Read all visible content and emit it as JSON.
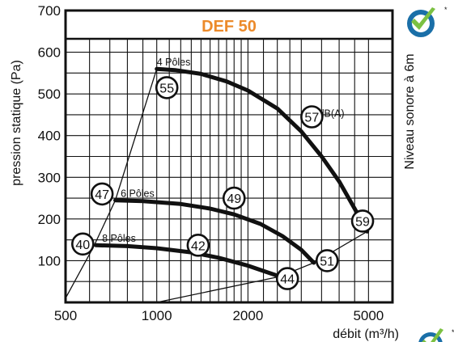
{
  "chart_data": {
    "type": "line",
    "title": "DEF 50",
    "xlabel": "débit (m³/h)",
    "ylabel": "pression statique (Pa)",
    "y2label": "Niveau sonore à 6m",
    "x_scale": "log",
    "xlim": [
      500,
      6000
    ],
    "ylim": [
      0,
      700
    ],
    "x_ticks": [
      500,
      1000,
      2000,
      5000
    ],
    "y_ticks": [
      100,
      200,
      300,
      400,
      500,
      600,
      700
    ],
    "grid": true,
    "series": [
      {
        "name": "4 Pôles",
        "x": [
          1000,
          1150,
          1400,
          1700,
          2000,
          2500,
          3000,
          3500,
          4000,
          4500,
          4950
        ],
        "y": [
          560,
          557,
          548,
          530,
          508,
          465,
          410,
          350,
          290,
          225,
          170
        ]
      },
      {
        "name": "6 Pôles",
        "x": [
          730,
          900,
          1200,
          1500,
          1800,
          2200,
          2600,
          3000,
          3300
        ],
        "y": [
          245,
          243,
          236,
          225,
          211,
          188,
          159,
          126,
          95
        ]
      },
      {
        "name": "8 Pôles",
        "x": [
          630,
          800,
          1000,
          1300,
          1600,
          2000,
          2300,
          2550
        ],
        "y": [
          137,
          135,
          130,
          120,
          107,
          88,
          73,
          62
        ]
      },
      {
        "name": "",
        "x": [
          500,
          620,
          730,
          1000
        ],
        "y": [
          10,
          135,
          245,
          560
        ]
      },
      {
        "name": "",
        "x": [
          1000,
          2550,
          3300,
          4950
        ],
        "y": [
          0,
          62,
          95,
          170
        ]
      }
    ],
    "noise_labels": [
      {
        "text": "55",
        "x": 1080,
        "y": 515
      },
      {
        "text": "57",
        "x": 3250,
        "y": 445
      },
      {
        "text": "47",
        "x": 660,
        "y": 260
      },
      {
        "text": "49",
        "x": 1800,
        "y": 250
      },
      {
        "text": "59",
        "x": 4780,
        "y": 195
      },
      {
        "text": "40",
        "x": 570,
        "y": 140
      },
      {
        "text": "42",
        "x": 1370,
        "y": 137
      },
      {
        "text": "51",
        "x": 3650,
        "y": 100
      },
      {
        "text": "44",
        "x": 2700,
        "y": 57
      }
    ],
    "annotations": [
      {
        "text": "4 Pôles",
        "x": 1000,
        "y": 568
      },
      {
        "text": "6 Pôles",
        "x": 760,
        "y": 253
      },
      {
        "text": "8 Pôles",
        "x": 660,
        "y": 145
      },
      {
        "text": "dB(A)",
        "x": 3420,
        "y": 445
      }
    ]
  },
  "colors": {
    "title": "#ec8a2a",
    "curve": "#111111",
    "grid": "#111111",
    "logo_check": "#7cc142",
    "logo_circle": "#1a6fa8"
  },
  "icons": [
    "certification-check-logo"
  ]
}
